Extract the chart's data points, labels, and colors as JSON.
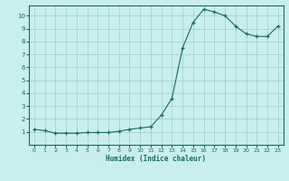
{
  "x": [
    0,
    1,
    2,
    3,
    4,
    5,
    6,
    7,
    8,
    9,
    10,
    11,
    12,
    13,
    14,
    15,
    16,
    17,
    18,
    19,
    20,
    21,
    22,
    23
  ],
  "y": [
    1.2,
    1.1,
    0.9,
    0.9,
    0.9,
    0.95,
    0.95,
    0.95,
    1.05,
    1.2,
    1.3,
    1.4,
    2.3,
    3.6,
    7.5,
    9.5,
    10.5,
    10.3,
    10.0,
    9.2,
    8.6,
    8.4,
    8.4,
    9.2
  ],
  "xlabel": "Humidex (Indice chaleur)",
  "xlim_min": -0.5,
  "xlim_max": 23.5,
  "ylim_min": 0,
  "ylim_max": 10.8,
  "yticks": [
    1,
    2,
    3,
    4,
    5,
    6,
    7,
    8,
    9,
    10
  ],
  "xticks": [
    0,
    1,
    2,
    3,
    4,
    5,
    6,
    7,
    8,
    9,
    10,
    11,
    12,
    13,
    14,
    15,
    16,
    17,
    18,
    19,
    20,
    21,
    22,
    23
  ],
  "line_color": "#1a6b5a",
  "marker_color": "#1a6b5a",
  "bg_color": "#c8eeee",
  "grid_color": "#9ecece",
  "spine_color": "#1a6b5a",
  "tick_label_color": "#1a6b5a"
}
